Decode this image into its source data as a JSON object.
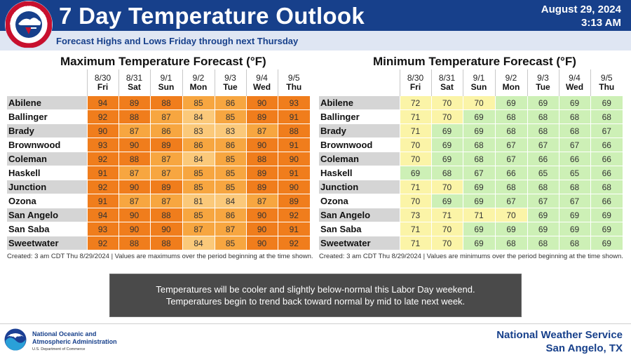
{
  "header": {
    "title": "7 Day Temperature Outlook",
    "date": "August 29, 2024",
    "time": "3:13 AM",
    "subtitle": "Forecast Highs and Lows Friday through next Thursday",
    "logo_text": "NATIONAL WEATHER SERVICE"
  },
  "columns": {
    "dates": [
      "8/30",
      "8/31",
      "9/1",
      "9/2",
      "9/3",
      "9/4",
      "9/5"
    ],
    "days": [
      "Fri",
      "Sat",
      "Sun",
      "Mon",
      "Tue",
      "Wed",
      "Thu"
    ]
  },
  "max_table": {
    "title": "Maximum Temperature Forecast (°F)",
    "footnote": "Created: 3 am CDT Thu 8/29/2024  |  Values are maximums over the period beginning at the time shown.",
    "rows": [
      {
        "city": "Abilene",
        "values": [
          94,
          89,
          88,
          85,
          86,
          90,
          93
        ]
      },
      {
        "city": "Ballinger",
        "values": [
          92,
          88,
          87,
          84,
          85,
          89,
          91
        ]
      },
      {
        "city": "Brady",
        "values": [
          90,
          87,
          86,
          83,
          83,
          87,
          88
        ]
      },
      {
        "city": "Brownwood",
        "values": [
          93,
          90,
          89,
          86,
          86,
          90,
          91
        ]
      },
      {
        "city": "Coleman",
        "values": [
          92,
          88,
          87,
          84,
          85,
          88,
          90
        ]
      },
      {
        "city": "Haskell",
        "values": [
          91,
          87,
          87,
          85,
          85,
          89,
          91
        ]
      },
      {
        "city": "Junction",
        "values": [
          92,
          90,
          89,
          85,
          85,
          89,
          90
        ]
      },
      {
        "city": "Ozona",
        "values": [
          91,
          87,
          87,
          81,
          84,
          87,
          89
        ]
      },
      {
        "city": "San Angelo",
        "values": [
          94,
          90,
          88,
          85,
          86,
          90,
          92
        ]
      },
      {
        "city": "San Saba",
        "values": [
          93,
          90,
          90,
          87,
          87,
          90,
          91
        ]
      },
      {
        "city": "Sweetwater",
        "values": [
          92,
          88,
          88,
          84,
          85,
          90,
          92
        ]
      }
    ]
  },
  "min_table": {
    "title": "Minimum Temperature Forecast (°F)",
    "footnote": "Created: 3 am CDT Thu 8/29/2024  |  Values are minimums over the period beginning at the time shown.",
    "rows": [
      {
        "city": "Abilene",
        "values": [
          72,
          70,
          70,
          69,
          69,
          69,
          69
        ]
      },
      {
        "city": "Ballinger",
        "values": [
          71,
          70,
          69,
          68,
          68,
          68,
          68
        ]
      },
      {
        "city": "Brady",
        "values": [
          71,
          69,
          69,
          68,
          68,
          68,
          67
        ]
      },
      {
        "city": "Brownwood",
        "values": [
          70,
          69,
          68,
          67,
          67,
          67,
          66
        ]
      },
      {
        "city": "Coleman",
        "values": [
          70,
          69,
          68,
          67,
          66,
          66,
          66
        ]
      },
      {
        "city": "Haskell",
        "values": [
          69,
          68,
          67,
          66,
          65,
          65,
          66
        ]
      },
      {
        "city": "Junction",
        "values": [
          71,
          70,
          69,
          68,
          68,
          68,
          68
        ]
      },
      {
        "city": "Ozona",
        "values": [
          70,
          69,
          69,
          67,
          67,
          67,
          66
        ]
      },
      {
        "city": "San Angelo",
        "values": [
          73,
          71,
          71,
          70,
          69,
          69,
          69
        ]
      },
      {
        "city": "San Saba",
        "values": [
          71,
          70,
          69,
          69,
          69,
          69,
          69
        ]
      },
      {
        "city": "Sweetwater",
        "values": [
          71,
          70,
          69,
          68,
          68,
          68,
          69
        ]
      }
    ]
  },
  "message": {
    "line1": "Temperatures will be cooler and slightly below-normal this Labor Day weekend.",
    "line2": "Temperatures begin to trend back toward normal by mid to late next week."
  },
  "footer": {
    "noaa_line1": "National Oceanic and",
    "noaa_line2": "Atmospheric Administration",
    "noaa_dept": "U.S. Department of Commerce",
    "noaa_logo_text": "NOAA",
    "nws_line1": "National Weather Service",
    "nws_line2": "San Angelo, TX"
  },
  "colors": {
    "header_blue": "#17408b",
    "max_hot": "#f07d1c",
    "max_warm": "#f7a640",
    "max_mild": "#fbc97a",
    "min_yellow": "#fbf4a7",
    "min_green": "#cdf0b6"
  }
}
